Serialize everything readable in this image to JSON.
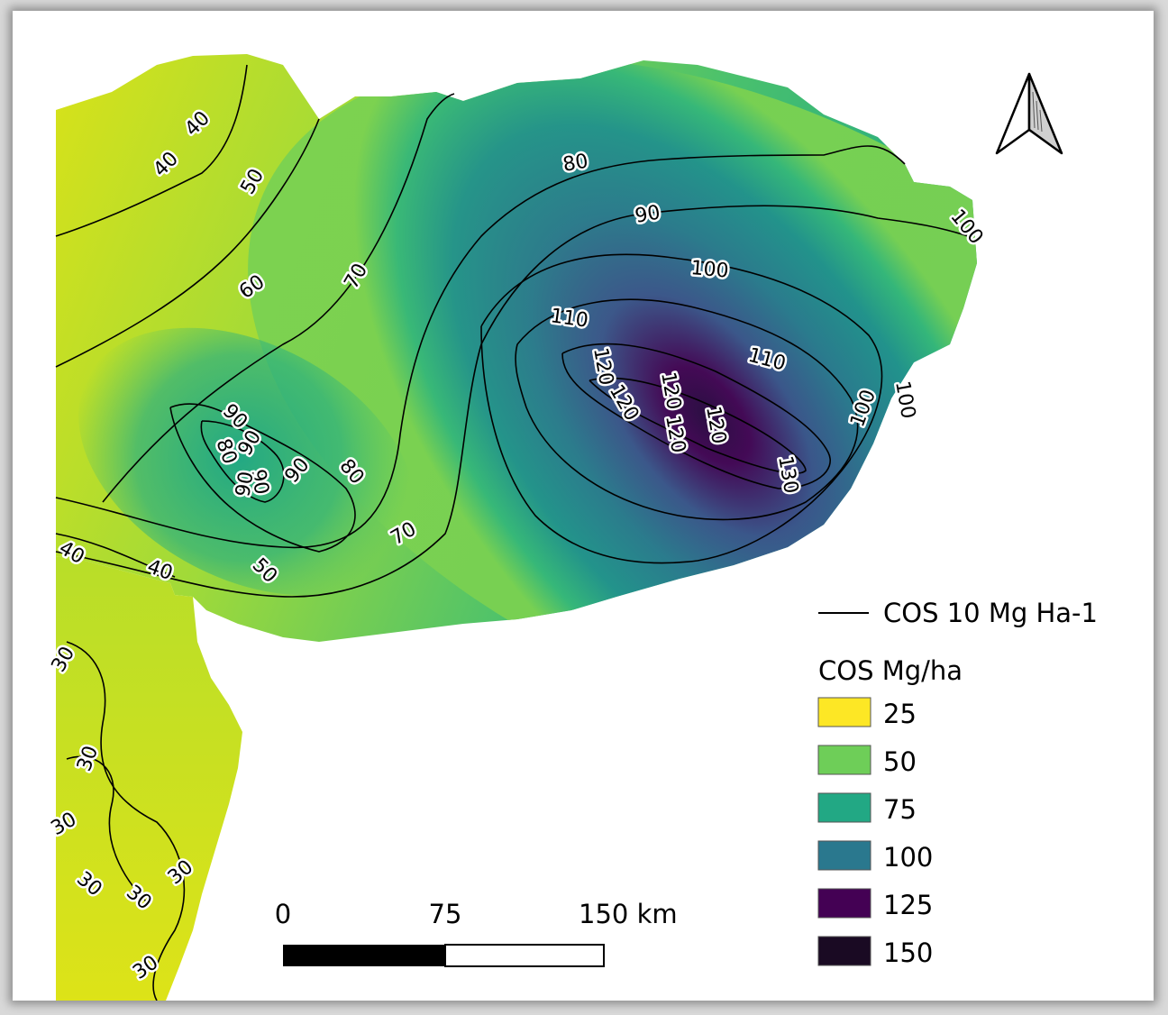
{
  "contour_labels": [
    "40",
    "40",
    "50",
    "60",
    "70",
    "80",
    "90",
    "100",
    "110",
    "110",
    "120",
    "120",
    "120",
    "120",
    "120",
    "130",
    "100",
    "100",
    "100",
    "90",
    "90",
    "90",
    "90",
    "90",
    "80",
    "80",
    "70",
    "70",
    "50",
    "40",
    "40",
    "30",
    "30",
    "30",
    "30",
    "30",
    "30",
    "30"
  ],
  "legend": {
    "line_label": "COS 10 Mg Ha-1",
    "title": "COS Mg/ha",
    "classes": [
      {
        "label": "25",
        "color": "#fde725"
      },
      {
        "label": "50",
        "color": "#6ece58"
      },
      {
        "label": "75",
        "color": "#22a884"
      },
      {
        "label": "100",
        "color": "#2a788e"
      },
      {
        "label": "125",
        "color": "#440154"
      },
      {
        "label": "150",
        "color": "#1a0a23"
      }
    ]
  },
  "scale_bar": {
    "labels": [
      "0",
      "75",
      "150 km"
    ]
  },
  "north_arrow": {
    "icon": "north-arrow-icon"
  }
}
